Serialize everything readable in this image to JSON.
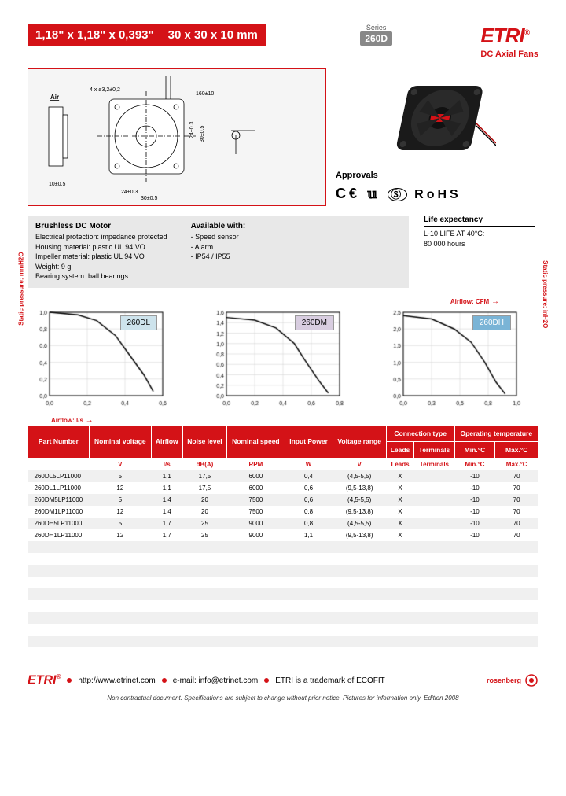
{
  "header": {
    "dim_inches": "1,18\" x 1,18\" x 0,393\"",
    "dim_mm": "30 x 30 x 10 mm",
    "series_label": "Series",
    "series": "260D",
    "brand": "ETRI",
    "subtitle": "DC Axial Fans"
  },
  "drawing": {
    "holes": "4 x ø3,2±0,2",
    "air": "Air",
    "d10": "10±0.5",
    "d24": "24±0.3",
    "d30": "30±0.5",
    "d160": "160±10",
    "d24v": "24±0.3",
    "d30v": "30±0.5"
  },
  "approvals": {
    "title": "Approvals",
    "marks": "CE  ⬛  Ⓒ  RoHS"
  },
  "motor": {
    "title": "Brushless DC Motor",
    "lines": [
      "Electrical protection: impedance protected",
      "Housing material: plastic UL 94 VO",
      "Impeller material: plastic UL 94 VO",
      "Weight: 9 g",
      "Bearing system: ball bearings"
    ]
  },
  "available": {
    "title": "Available with:",
    "lines": [
      "- Speed sensor",
      "- Alarm",
      "- IP54 / IP55"
    ]
  },
  "life": {
    "title": "Life expectancy",
    "l1": "L-10 LIFE AT 40°C:",
    "l2": "80 000 hours"
  },
  "charts": {
    "airflow_cfm": "Airflow: CFM",
    "airflow_ls": "Airflow: l/s",
    "y_mm": "Static pressure: mmH2O",
    "y_in": "Static pressure: inH2O",
    "items": [
      {
        "label": "260DL",
        "bg": "#cde3ec",
        "xlim": [
          0,
          0.6
        ],
        "ylim": [
          0,
          1.0
        ],
        "xtick": 0.2,
        "ytick": 0.2,
        "curve": [
          [
            0,
            1.0
          ],
          [
            0.15,
            0.97
          ],
          [
            0.25,
            0.9
          ],
          [
            0.35,
            0.72
          ],
          [
            0.42,
            0.5
          ],
          [
            0.5,
            0.25
          ],
          [
            0.55,
            0.05
          ]
        ]
      },
      {
        "label": "260DM",
        "bg": "#d8cde0",
        "xlim": [
          0,
          0.8
        ],
        "ylim": [
          0,
          1.6
        ],
        "xtick": 0.2,
        "ytick": 0.2,
        "curve": [
          [
            0,
            1.5
          ],
          [
            0.2,
            1.45
          ],
          [
            0.35,
            1.3
          ],
          [
            0.48,
            1.0
          ],
          [
            0.55,
            0.7
          ],
          [
            0.65,
            0.3
          ],
          [
            0.72,
            0.05
          ]
        ]
      },
      {
        "label": "260DH",
        "bg": "#7ab4d6",
        "xlim": [
          0,
          1.0
        ],
        "ylim": [
          0,
          2.5
        ],
        "xtick": 0.25,
        "ytick": 0.5,
        "curve": [
          [
            0,
            2.4
          ],
          [
            0.25,
            2.3
          ],
          [
            0.45,
            2.0
          ],
          [
            0.6,
            1.6
          ],
          [
            0.72,
            1.0
          ],
          [
            0.82,
            0.4
          ],
          [
            0.9,
            0.05
          ]
        ]
      }
    ],
    "grid_color": "#cccccc",
    "line_color": "#000000",
    "tick_fontsize": 7
  },
  "table": {
    "headers": [
      "Part Number",
      "Nominal voltage",
      "Airflow",
      "Noise level",
      "Nominal speed",
      "Input Power",
      "Voltage range",
      "Connection type",
      "Operating temperature"
    ],
    "subhead": {
      "conn": [
        "Leads",
        "Terminals"
      ],
      "temp": [
        "Min.°C",
        "Max.°C"
      ]
    },
    "units": [
      "",
      "V",
      "l/s",
      "dB(A)",
      "RPM",
      "W",
      "V",
      "",
      "",
      "",
      ""
    ],
    "rows": [
      [
        "260DL5LP11000",
        "5",
        "1,1",
        "17,5",
        "6000",
        "0,4",
        "(4,5-5,5)",
        "X",
        "",
        "-10",
        "70"
      ],
      [
        "260DL1LP11000",
        "12",
        "1,1",
        "17,5",
        "6000",
        "0,6",
        "(9,5-13,8)",
        "X",
        "",
        "-10",
        "70"
      ],
      [
        "260DM5LP11000",
        "5",
        "1,4",
        "20",
        "7500",
        "0,6",
        "(4,5-5,5)",
        "X",
        "",
        "-10",
        "70"
      ],
      [
        "260DM1LP11000",
        "12",
        "1,4",
        "20",
        "7500",
        "0,8",
        "(9,5-13,8)",
        "X",
        "",
        "-10",
        "70"
      ],
      [
        "260DH5LP11000",
        "5",
        "1,7",
        "25",
        "9000",
        "0,8",
        "(4,5-5,5)",
        "X",
        "",
        "-10",
        "70"
      ],
      [
        "260DH1LP11000",
        "12",
        "1,7",
        "25",
        "9000",
        "1,1",
        "(9,5-13,8)",
        "X",
        "",
        "-10",
        "70"
      ]
    ]
  },
  "footer": {
    "url": "http://www.etrinet.com",
    "email_label": "e-mail: info@etrinet.com",
    "trademark": "ETRI is a trademark of ECOFIT",
    "rosenberg": "rosenberg",
    "disclaimer": "Non contractual document. Specifications are subject to change without prior notice. Pictures for information only. Edition 2008"
  }
}
